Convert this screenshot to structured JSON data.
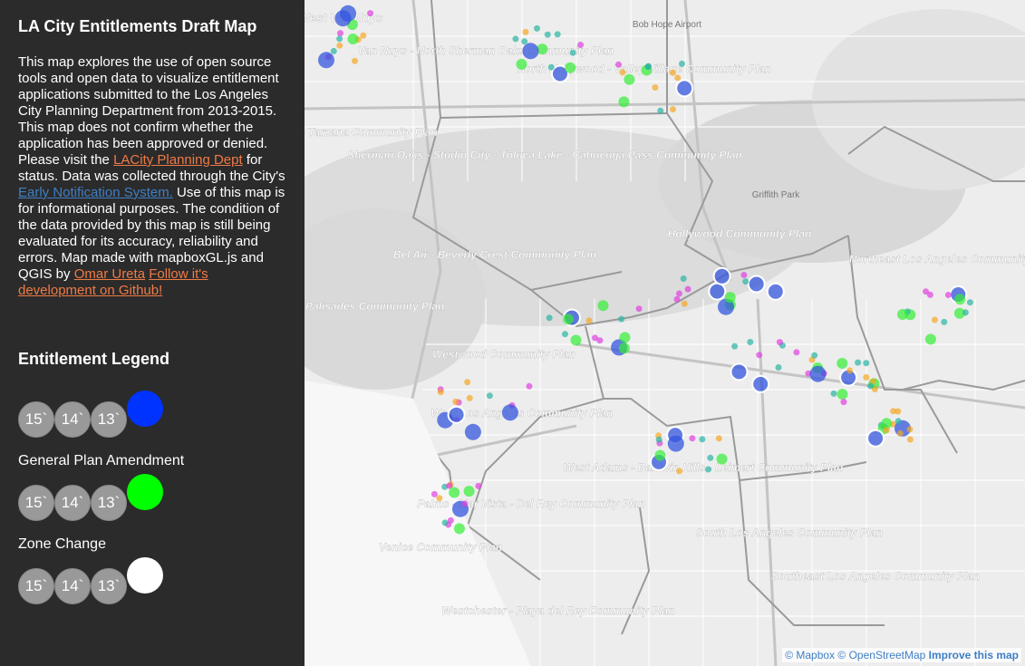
{
  "sidebar": {
    "title": "LA City Entitlements Draft Map",
    "desc_1": "This map explores the use of open source tools and open data to visualize entitlement applications submitted to the Los Angeles City Planning Department from 2013-2015. This map does not confirm whether the application has been approved or denied. Please visit the ",
    "link_planning": "LACity Planning Dept",
    "desc_2": " for status. Data was collected through the City's ",
    "link_ens": "Early Notification System.",
    "desc_3": " Use of this map is for informational purposes. The condition of the data provided by this map is still being evaluated for its accuracy, reliability and errors. Map made with mapboxGL.js and QGIS by ",
    "link_author": "Omar Ureta",
    "desc_4": " ",
    "link_github": "Follow it's development on Github!",
    "legend_title": "Entitlement Legend",
    "legend": [
      {
        "years": [
          "15`",
          "14`",
          "13`"
        ],
        "color": "#0033ff",
        "label": "General Plan Amendment"
      },
      {
        "years": [
          "15`",
          "14`",
          "13`"
        ],
        "color": "#00ff00",
        "label": "Zone Change"
      },
      {
        "years": [
          "15`",
          "14`",
          "13`"
        ],
        "color": "#ffffff",
        "label": ""
      }
    ]
  },
  "map": {
    "labels": [
      "West Van Nuys",
      "Van Nuys - North Sherman Oaks Community Plan",
      "North Hollywood - Valley Village Community Plan",
      "Bob Hope Airport",
      "Encino - Tarzana Community Plan",
      "Sherman Oaks - Studio City - Toluca Lake - Cahuenga Pass Community Plan",
      "Griffith Park",
      "Hollywood Community Plan",
      "Bel Air - Beverly Crest Community Plan",
      "Northeast Los Angeles Community Plan",
      "Brentwood - Pacific Palisades Community Plan",
      "Westwood Community Plan",
      "West Los Angeles Community Plan",
      "West Adams - Baldwin Hills - Leimert Community Plan",
      "Palms - Mar Vista - Del Rey Community Plan",
      "Venice Community Plan",
      "South Los Angeles Community Plan",
      "Southeast Los Angeles Community Plan",
      "Westchester - Playa del Rey Community Plan"
    ],
    "attribution_mapbox": "© Mapbox",
    "attribution_osm": "© OpenStreetMap",
    "attribution_improve": "Improve this map",
    "colors": {
      "gpa": "#3355dd",
      "zc": "#33ee33",
      "misc_orange": "#f5a623",
      "misc_teal": "#2ab3a3",
      "misc_magenta": "#e040e0"
    }
  }
}
